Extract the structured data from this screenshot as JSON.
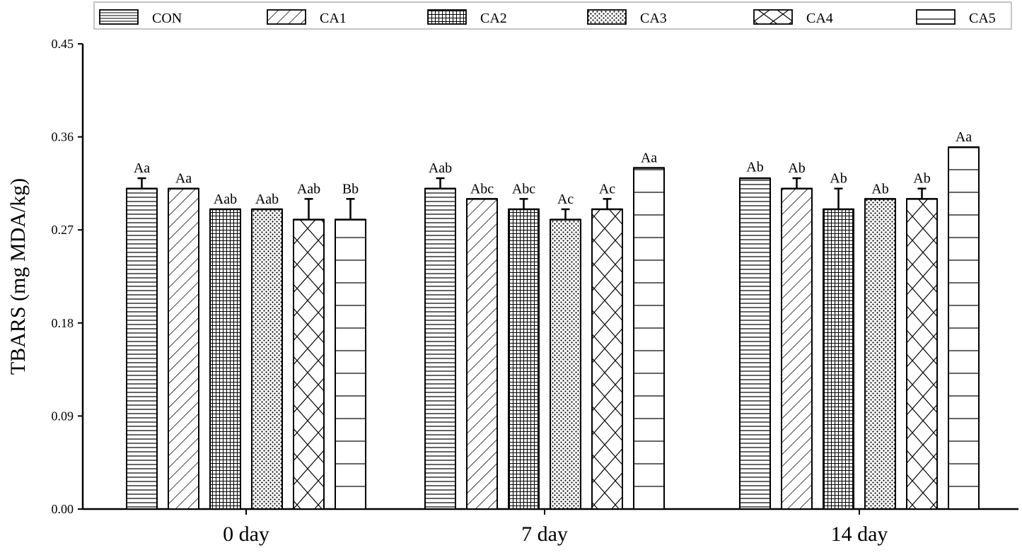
{
  "chart_data": {
    "type": "bar",
    "title": "",
    "xlabel": "",
    "ylabel": "TBARS (mg MDA/kg)",
    "ylim": [
      0,
      0.45
    ],
    "yticks": [
      "0.00",
      "0.09",
      "0.18",
      "0.27",
      "0.36",
      "0.45"
    ],
    "grid": false,
    "legend_position": "top",
    "categories": [
      "0 day",
      "7 day",
      "14 day"
    ],
    "series": [
      {
        "name": "CON",
        "pattern": "hlines-dense",
        "values": [
          0.31,
          0.31,
          0.32
        ],
        "errors": [
          0.01,
          0.01,
          0.001
        ],
        "labels": [
          "Aa",
          "Aab",
          "Ab"
        ]
      },
      {
        "name": "CA1",
        "pattern": "diagonal",
        "values": [
          0.31,
          0.3,
          0.31
        ],
        "errors": [
          0.0,
          0.0,
          0.01
        ],
        "labels": [
          "Aa",
          "Abc",
          "Ab"
        ]
      },
      {
        "name": "CA2",
        "pattern": "grid",
        "values": [
          0.29,
          0.29,
          0.29
        ],
        "errors": [
          0.0,
          0.01,
          0.02
        ],
        "labels": [
          "Aab",
          "Abc",
          "Ab"
        ]
      },
      {
        "name": "CA3",
        "pattern": "dots",
        "values": [
          0.29,
          0.28,
          0.3
        ],
        "errors": [
          0.0,
          0.01,
          0.0
        ],
        "labels": [
          "Aab",
          "Ac",
          "Ab"
        ]
      },
      {
        "name": "CA4",
        "pattern": "crosshatch",
        "values": [
          0.28,
          0.29,
          0.3
        ],
        "errors": [
          0.02,
          0.01,
          0.01
        ],
        "labels": [
          "Aab",
          "Ac",
          "Ab"
        ]
      },
      {
        "name": "CA5",
        "pattern": "hlines-sparse",
        "values": [
          0.28,
          0.33,
          0.35
        ],
        "errors": [
          0.02,
          0.0,
          0.0
        ],
        "labels": [
          "Bb",
          "Aa",
          "Aa"
        ]
      }
    ]
  }
}
